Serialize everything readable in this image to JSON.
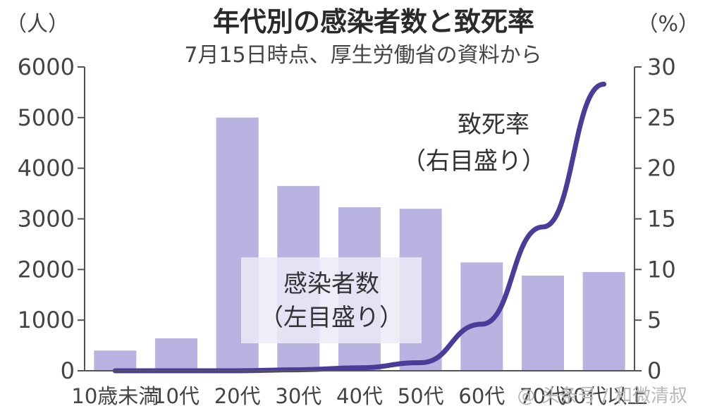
{
  "chart_data": {
    "type": "bar",
    "title": "年代別の感染者数と致死率",
    "subtitle": "7月15日時点、厚生労働省の資料から",
    "categories": [
      "10歳未満",
      "10代",
      "20代",
      "30代",
      "40代",
      "50代",
      "60代",
      "70代",
      "80代以上"
    ],
    "series": [
      {
        "name": "感染者数",
        "type": "bar",
        "axis": "left",
        "values": [
          400,
          640,
          5000,
          3650,
          3230,
          3200,
          2140,
          1880,
          1950
        ]
      },
      {
        "name": "致死率",
        "type": "line",
        "axis": "right",
        "values": [
          0,
          0,
          0,
          0.1,
          0.3,
          0.8,
          4.6,
          14.2,
          28.3
        ]
      }
    ],
    "y_left": {
      "unit": "（人）",
      "range": [
        0,
        6000
      ],
      "ticks": [
        "0",
        "1000",
        "2000",
        "3000",
        "4000",
        "5000",
        "6000"
      ]
    },
    "y_right": {
      "unit": "（%）",
      "range": [
        0,
        30
      ],
      "ticks": [
        "0",
        "5",
        "10",
        "15",
        "20",
        "25",
        "30"
      ]
    },
    "annotations": {
      "bars_label": "感染者数",
      "bars_axis_note": "（左目盛り）",
      "line_label": "致死率",
      "line_axis_note": "（右目盛り）"
    },
    "watermark": "@ 头条号 / 和微清叔",
    "grid": false,
    "colors": {
      "bar": "#b8b3e0",
      "line": "#4a3d9a",
      "axis": "#555555"
    }
  }
}
